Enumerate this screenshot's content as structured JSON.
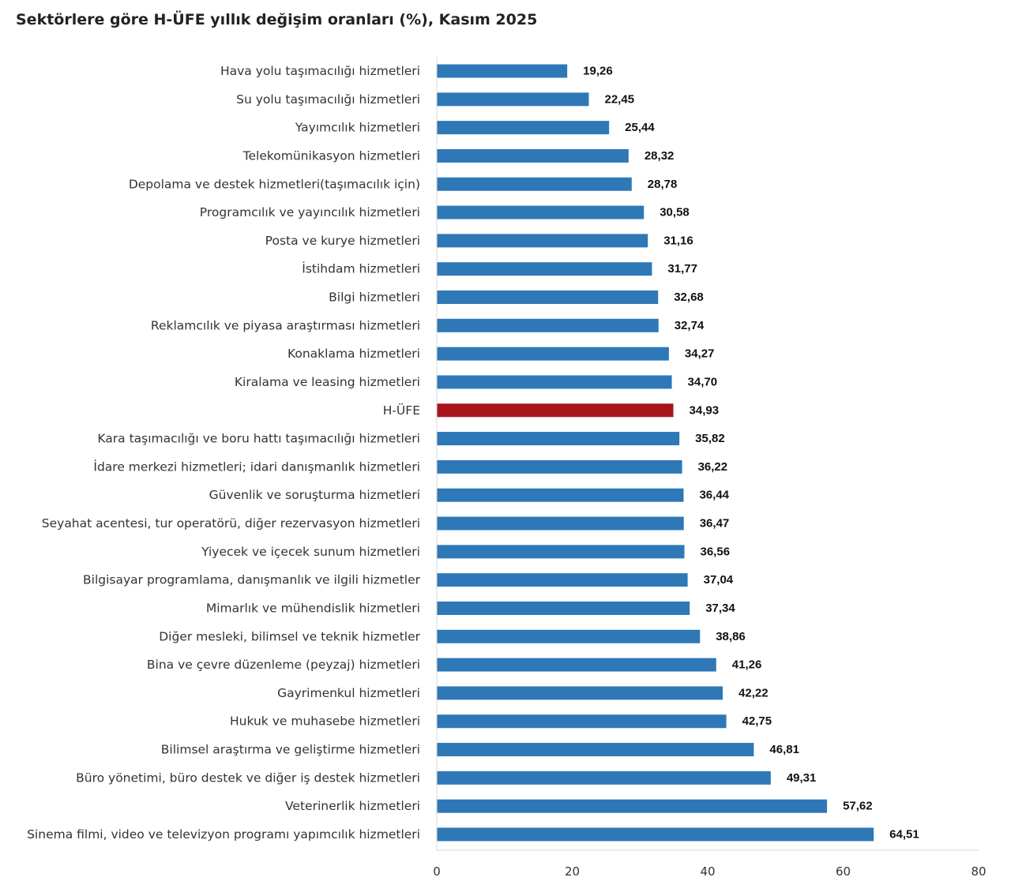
{
  "chart_data": {
    "type": "bar",
    "orientation": "horizontal",
    "title": "Sektörlere göre H-ÜFE yıllık değişim oranları (%), Kasım 2025",
    "categories": [
      "Hava yolu taşımacılığı hizmetleri",
      "Su yolu taşımacılığı hizmetleri",
      "Yayımcılık hizmetleri",
      "Telekomünikasyon hizmetleri",
      "Depolama ve destek hizmetleri(taşımacılık için)",
      "Programcılık ve yayıncılık hizmetleri",
      "Posta ve kurye hizmetleri",
      "İstihdam hizmetleri",
      "Bilgi hizmetleri",
      "Reklamcılık ve piyasa araştırması hizmetleri",
      "Konaklama hizmetleri",
      "Kiralama ve leasing hizmetleri",
      "H-ÜFE",
      "Kara taşımacılığı ve boru hattı taşımacılığı hizmetleri",
      "İdare merkezi hizmetleri; idari danışmanlık hizmetleri",
      "Güvenlik ve soruşturma hizmetleri",
      "Seyahat acentesi, tur operatörü, diğer rezervasyon hizmetleri",
      "Yiyecek ve içecek sunum hizmetleri",
      "Bilgisayar programlama, danışmanlık ve ilgili hizmetler",
      "Mimarlık ve mühendislik hizmetleri",
      "Diğer mesleki, bilimsel ve teknik hizmetler",
      "Bina ve çevre düzenleme (peyzaj) hizmetleri",
      "Gayrimenkul hizmetleri",
      "Hukuk ve muhasebe hizmetleri",
      "Bilimsel araştırma ve geliştirme hizmetleri",
      "Büro yönetimi, büro destek ve diğer iş destek hizmetleri",
      "Veterinerlik hizmetleri",
      "Sinema filmi, video ve televizyon programı yapımcılık hizmetleri"
    ],
    "values": [
      19.26,
      22.45,
      25.44,
      28.32,
      28.78,
      30.58,
      31.16,
      31.77,
      32.68,
      32.74,
      34.27,
      34.7,
      34.93,
      35.82,
      36.22,
      36.44,
      36.47,
      36.56,
      37.04,
      37.34,
      38.86,
      41.26,
      42.22,
      42.75,
      46.81,
      49.31,
      57.62,
      64.51
    ],
    "value_labels": [
      "19,26",
      "22,45",
      "25,44",
      "28,32",
      "28,78",
      "30,58",
      "31,16",
      "31,77",
      "32,68",
      "32,74",
      "34,27",
      "34,70",
      "34,93",
      "35,82",
      "36,22",
      "36,44",
      "36,47",
      "36,56",
      "37,04",
      "37,34",
      "38,86",
      "41,26",
      "42,22",
      "42,75",
      "46,81",
      "49,31",
      "57,62",
      "64,51"
    ],
    "highlight_category": "H-ÜFE",
    "xlim": [
      0,
      80
    ],
    "x_ticks": [
      0,
      20,
      40,
      60,
      80
    ],
    "xlabel": "",
    "ylabel": "",
    "grid": false,
    "legend": "none"
  },
  "colors": {
    "bar": "#2e78b7",
    "highlight_bar": "#a8141c",
    "axis": "#d9d9d9"
  }
}
